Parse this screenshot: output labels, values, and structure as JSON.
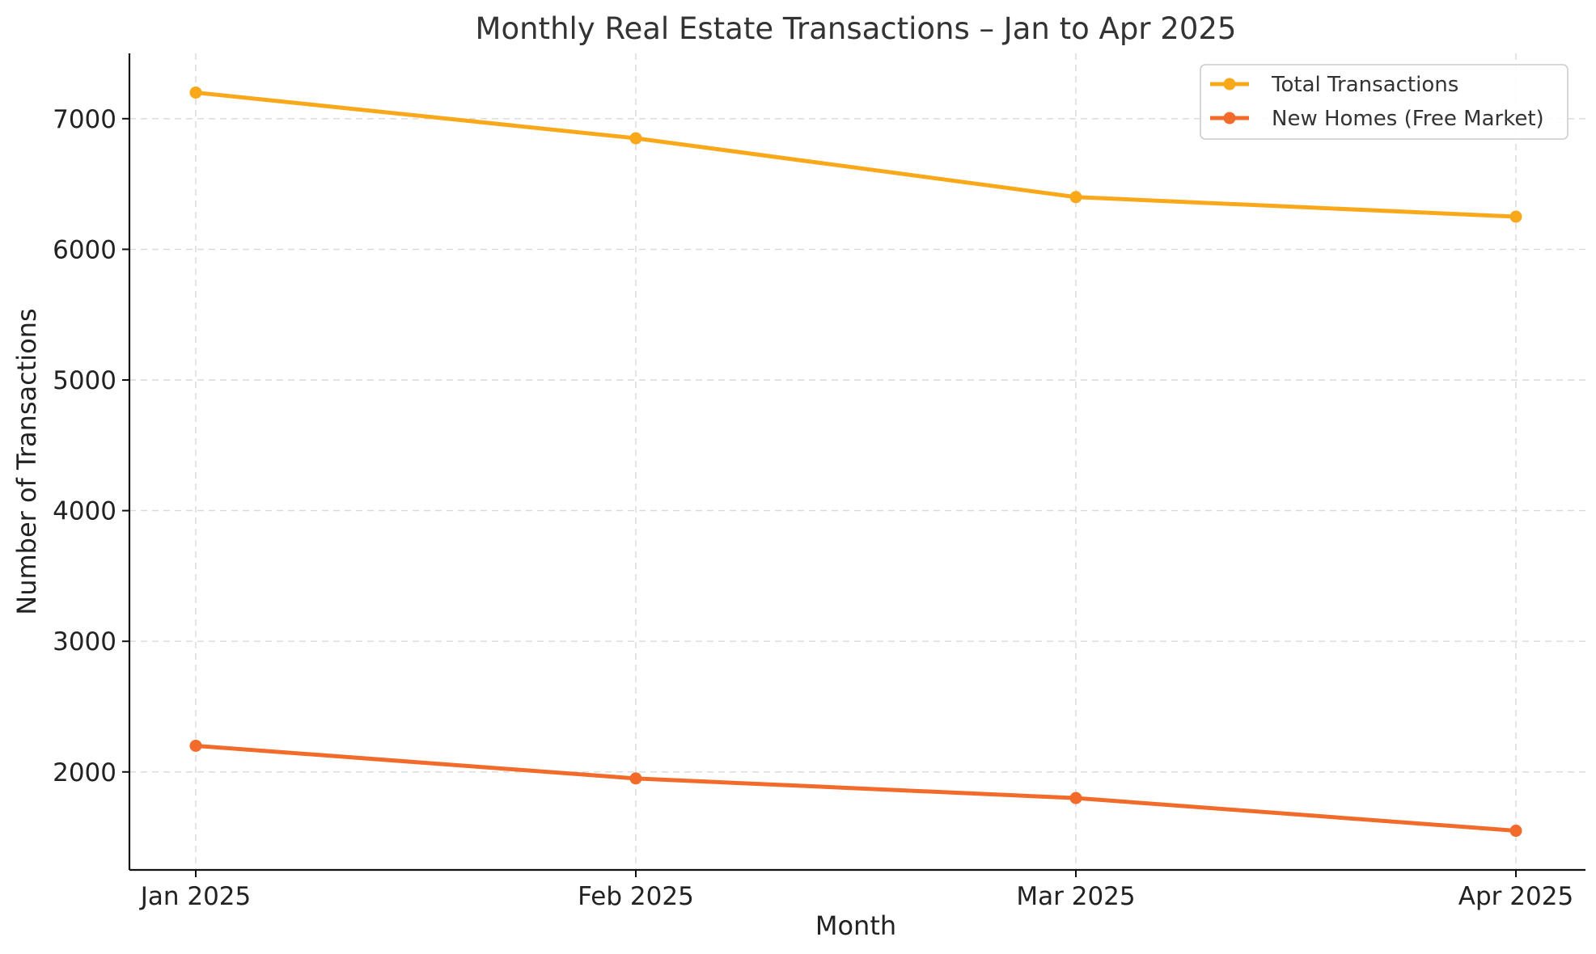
{
  "chart_data": {
    "type": "line",
    "title": "Monthly Real Estate Transactions – Jan to Apr 2025",
    "xlabel": "Month",
    "ylabel": "Number of Transactions",
    "categories": [
      "Jan 2025",
      "Feb 2025",
      "Mar 2025",
      "Apr 2025"
    ],
    "ylim": [
      1250,
      7500
    ],
    "yticks": [
      2000,
      3000,
      4000,
      5000,
      6000,
      7000
    ],
    "grid": true,
    "legend_position": "top-right",
    "series": [
      {
        "name": "Total Transactions",
        "color": "#F9A81A",
        "values": [
          7200,
          6850,
          6400,
          6250
        ]
      },
      {
        "name": "New Homes (Free Market)",
        "color": "#F26B2A",
        "values": [
          2200,
          1950,
          1800,
          1550
        ]
      }
    ]
  }
}
